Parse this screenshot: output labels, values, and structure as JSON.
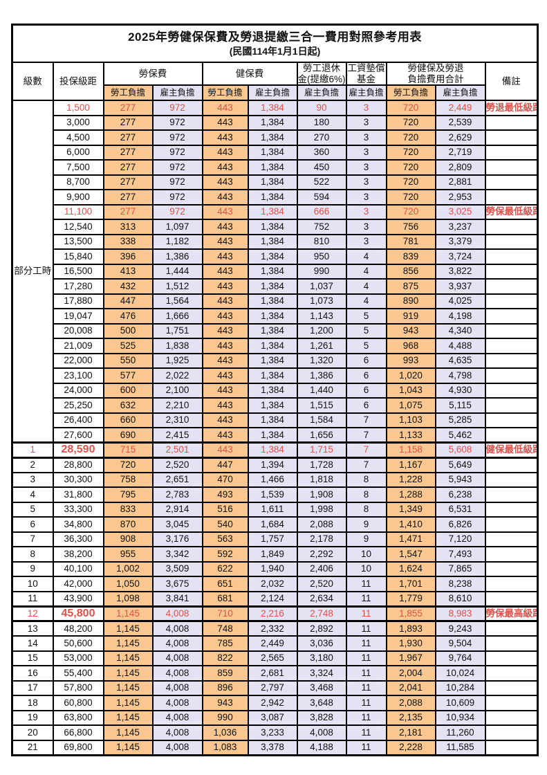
{
  "page": {
    "title": "2025年勞健保保費及勞退提繳三合一費用對照參考用表",
    "subtitle": "(民國114年1月1日起)"
  },
  "header": {
    "level": "級數",
    "bracket": "投保級距",
    "labor_group": "勞保費",
    "health_group": "健保費",
    "pension_line1": "勞工退休",
    "pension_line2": "金(提繳6%)",
    "wage_fund_line1": "工資墊償",
    "wage_fund_line2": "基金",
    "total_line1": "勞健保及勞退",
    "total_line2": "負擔費用合計",
    "remark": "備註",
    "employee_share": "勞工負擔",
    "employer_share": "雇主負擔"
  },
  "part_time_label": "部分工時",
  "colors": {
    "employee_bg": "#F9C78F",
    "employer_bg": "#E4E3F3",
    "highlight_red": "#E0504A",
    "border": "#000000"
  },
  "rows": [
    {
      "level": "",
      "bracket": "1,500",
      "cells": [
        "277",
        "972",
        "443",
        "1,384",
        "90",
        "3",
        "720",
        "2,449"
      ],
      "remark": "勞退最低級距",
      "red": true
    },
    {
      "level": "",
      "bracket": "3,000",
      "cells": [
        "277",
        "972",
        "443",
        "1,384",
        "180",
        "3",
        "720",
        "2,539"
      ],
      "remark": ""
    },
    {
      "level": "",
      "bracket": "4,500",
      "cells": [
        "277",
        "972",
        "443",
        "1,384",
        "270",
        "3",
        "720",
        "2,629"
      ],
      "remark": ""
    },
    {
      "level": "",
      "bracket": "6,000",
      "cells": [
        "277",
        "972",
        "443",
        "1,384",
        "360",
        "3",
        "720",
        "2,719"
      ],
      "remark": ""
    },
    {
      "level": "",
      "bracket": "7,500",
      "cells": [
        "277",
        "972",
        "443",
        "1,384",
        "450",
        "3",
        "720",
        "2,809"
      ],
      "remark": ""
    },
    {
      "level": "",
      "bracket": "8,700",
      "cells": [
        "277",
        "972",
        "443",
        "1,384",
        "522",
        "3",
        "720",
        "2,881"
      ],
      "remark": ""
    },
    {
      "level": "",
      "bracket": "9,900",
      "cells": [
        "277",
        "972",
        "443",
        "1,384",
        "594",
        "3",
        "720",
        "2,953"
      ],
      "remark": ""
    },
    {
      "level": "",
      "bracket": "11,100",
      "cells": [
        "277",
        "972",
        "443",
        "1,384",
        "666",
        "3",
        "720",
        "3,025"
      ],
      "remark": "勞保最低級距",
      "red": true
    },
    {
      "level": "",
      "bracket": "12,540",
      "cells": [
        "313",
        "1,097",
        "443",
        "1,384",
        "752",
        "3",
        "756",
        "3,237"
      ],
      "remark": ""
    },
    {
      "level": "",
      "bracket": "13,500",
      "cells": [
        "338",
        "1,182",
        "443",
        "1,384",
        "810",
        "3",
        "781",
        "3,379"
      ],
      "remark": ""
    },
    {
      "level": "",
      "bracket": "15,840",
      "cells": [
        "396",
        "1,386",
        "443",
        "1,384",
        "950",
        "4",
        "839",
        "3,724"
      ],
      "remark": ""
    },
    {
      "level": "",
      "bracket": "16,500",
      "cells": [
        "413",
        "1,444",
        "443",
        "1,384",
        "990",
        "4",
        "856",
        "3,822"
      ],
      "remark": ""
    },
    {
      "level": "",
      "bracket": "17,280",
      "cells": [
        "432",
        "1,512",
        "443",
        "1,384",
        "1,037",
        "4",
        "875",
        "3,937"
      ],
      "remark": ""
    },
    {
      "level": "",
      "bracket": "17,880",
      "cells": [
        "447",
        "1,564",
        "443",
        "1,384",
        "1,073",
        "4",
        "890",
        "4,025"
      ],
      "remark": ""
    },
    {
      "level": "",
      "bracket": "19,047",
      "cells": [
        "476",
        "1,666",
        "443",
        "1,384",
        "1,143",
        "5",
        "919",
        "4,198"
      ],
      "remark": ""
    },
    {
      "level": "",
      "bracket": "20,008",
      "cells": [
        "500",
        "1,751",
        "443",
        "1,384",
        "1,200",
        "5",
        "943",
        "4,340"
      ],
      "remark": ""
    },
    {
      "level": "",
      "bracket": "21,009",
      "cells": [
        "525",
        "1,838",
        "443",
        "1,384",
        "1,261",
        "5",
        "968",
        "4,488"
      ],
      "remark": ""
    },
    {
      "level": "",
      "bracket": "22,000",
      "cells": [
        "550",
        "1,925",
        "443",
        "1,384",
        "1,320",
        "6",
        "993",
        "4,635"
      ],
      "remark": ""
    },
    {
      "level": "",
      "bracket": "23,100",
      "cells": [
        "577",
        "2,022",
        "443",
        "1,384",
        "1,386",
        "6",
        "1,020",
        "4,798"
      ],
      "remark": ""
    },
    {
      "level": "",
      "bracket": "24,000",
      "cells": [
        "600",
        "2,100",
        "443",
        "1,384",
        "1,440",
        "6",
        "1,043",
        "4,930"
      ],
      "remark": ""
    },
    {
      "level": "",
      "bracket": "25,250",
      "cells": [
        "632",
        "2,210",
        "443",
        "1,384",
        "1,515",
        "6",
        "1,075",
        "5,115"
      ],
      "remark": ""
    },
    {
      "level": "",
      "bracket": "26,400",
      "cells": [
        "660",
        "2,310",
        "443",
        "1,384",
        "1,584",
        "7",
        "1,103",
        "5,285"
      ],
      "remark": ""
    },
    {
      "level": "",
      "bracket": "27,600",
      "cells": [
        "690",
        "2,415",
        "443",
        "1,384",
        "1,656",
        "7",
        "1,133",
        "5,462"
      ],
      "remark": ""
    },
    {
      "level": "1",
      "bracket": "28,590",
      "cells": [
        "715",
        "2,501",
        "443",
        "1,384",
        "1,715",
        "7",
        "1,158",
        "5,608"
      ],
      "remark": "健保最低級距",
      "red": true,
      "bold": true
    },
    {
      "level": "2",
      "bracket": "28,800",
      "cells": [
        "720",
        "2,520",
        "447",
        "1,394",
        "1,728",
        "7",
        "1,167",
        "5,649"
      ],
      "remark": ""
    },
    {
      "level": "3",
      "bracket": "30,300",
      "cells": [
        "758",
        "2,651",
        "470",
        "1,466",
        "1,818",
        "8",
        "1,228",
        "5,943"
      ],
      "remark": ""
    },
    {
      "level": "4",
      "bracket": "31,800",
      "cells": [
        "795",
        "2,783",
        "493",
        "1,539",
        "1,908",
        "8",
        "1,288",
        "6,238"
      ],
      "remark": ""
    },
    {
      "level": "5",
      "bracket": "33,300",
      "cells": [
        "833",
        "2,914",
        "516",
        "1,611",
        "1,998",
        "8",
        "1,349",
        "6,531"
      ],
      "remark": ""
    },
    {
      "level": "6",
      "bracket": "34,800",
      "cells": [
        "870",
        "3,045",
        "540",
        "1,684",
        "2,088",
        "9",
        "1,410",
        "6,826"
      ],
      "remark": ""
    },
    {
      "level": "7",
      "bracket": "36,300",
      "cells": [
        "908",
        "3,176",
        "563",
        "1,757",
        "2,178",
        "9",
        "1,471",
        "7,120"
      ],
      "remark": ""
    },
    {
      "level": "8",
      "bracket": "38,200",
      "cells": [
        "955",
        "3,342",
        "592",
        "1,849",
        "2,292",
        "10",
        "1,547",
        "7,493"
      ],
      "remark": ""
    },
    {
      "level": "9",
      "bracket": "40,100",
      "cells": [
        "1,002",
        "3,509",
        "622",
        "1,940",
        "2,406",
        "10",
        "1,624",
        "7,865"
      ],
      "remark": ""
    },
    {
      "level": "10",
      "bracket": "42,000",
      "cells": [
        "1,050",
        "3,675",
        "651",
        "2,032",
        "2,520",
        "11",
        "1,701",
        "8,238"
      ],
      "remark": ""
    },
    {
      "level": "11",
      "bracket": "43,900",
      "cells": [
        "1,098",
        "3,841",
        "681",
        "2,124",
        "2,634",
        "11",
        "1,779",
        "8,610"
      ],
      "remark": ""
    },
    {
      "level": "12",
      "bracket": "45,800",
      "cells": [
        "1,145",
        "4,008",
        "710",
        "2,216",
        "2,748",
        "11",
        "1,855",
        "8,983"
      ],
      "remark": "勞保最高級距",
      "red": true,
      "bold": true
    },
    {
      "level": "13",
      "bracket": "48,200",
      "cells": [
        "1,145",
        "4,008",
        "748",
        "2,332",
        "2,892",
        "11",
        "1,893",
        "9,243"
      ],
      "remark": ""
    },
    {
      "level": "14",
      "bracket": "50,600",
      "cells": [
        "1,145",
        "4,008",
        "785",
        "2,449",
        "3,036",
        "11",
        "1,930",
        "9,504"
      ],
      "remark": ""
    },
    {
      "level": "15",
      "bracket": "53,000",
      "cells": [
        "1,145",
        "4,008",
        "822",
        "2,565",
        "3,180",
        "11",
        "1,967",
        "9,764"
      ],
      "remark": ""
    },
    {
      "level": "16",
      "bracket": "55,400",
      "cells": [
        "1,145",
        "4,008",
        "859",
        "2,681",
        "3,324",
        "11",
        "2,004",
        "10,024"
      ],
      "remark": ""
    },
    {
      "level": "17",
      "bracket": "57,800",
      "cells": [
        "1,145",
        "4,008",
        "896",
        "2,797",
        "3,468",
        "11",
        "2,041",
        "10,284"
      ],
      "remark": ""
    },
    {
      "level": "18",
      "bracket": "60,800",
      "cells": [
        "1,145",
        "4,008",
        "943",
        "2,942",
        "3,648",
        "11",
        "2,088",
        "10,609"
      ],
      "remark": ""
    },
    {
      "level": "19",
      "bracket": "63,800",
      "cells": [
        "1,145",
        "4,008",
        "990",
        "3,087",
        "3,828",
        "11",
        "2,135",
        "10,934"
      ],
      "remark": ""
    },
    {
      "level": "20",
      "bracket": "66,800",
      "cells": [
        "1,145",
        "4,008",
        "1,036",
        "3,233",
        "4,008",
        "11",
        "2,181",
        "11,260"
      ],
      "remark": ""
    },
    {
      "level": "21",
      "bracket": "69,800",
      "cells": [
        "1,145",
        "4,008",
        "1,083",
        "3,378",
        "4,188",
        "11",
        "2,228",
        "11,585"
      ],
      "remark": ""
    }
  ]
}
